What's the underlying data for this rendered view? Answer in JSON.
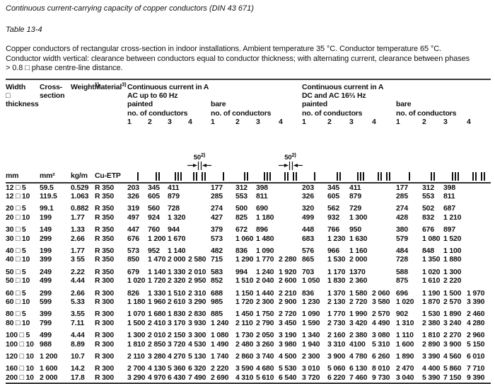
{
  "page": {
    "title": "Continuous current-carrying capacity of copper conductors (DIN 43 671)",
    "table_label": "Table 13-4",
    "description_lines": [
      "Copper conductors of rectangular cross-section in indoor installations. Ambient temperature 35 °C. Conductor temperature 65 °C.",
      "Conductor width vertical: clearance between conductors equal to conductor thickness; with alternating current, clearance between phases",
      "> 0.8 □ phase centre-line distance."
    ]
  },
  "table": {
    "header": {
      "width_line1": "Width",
      "width_line2": "□",
      "width_line3": "thickness",
      "cross_line1": "Cross-",
      "cross_line2": "section",
      "weight_label": "Weight",
      "weight_sup": "1)",
      "material_label": "Material",
      "material_sup": "3)",
      "ac_title": "Continuous current in A",
      "ac_subtitle": "AC up to 60 Hz",
      "dc_title": "Continuous current in A",
      "dc_subtitle": "DC and AC 16⅔ Hz",
      "painted": "painted",
      "bare": "bare",
      "no_of_conductors": "no. of conductors",
      "counts": [
        "1",
        "2",
        "3",
        "4"
      ]
    },
    "units": {
      "size": "mm",
      "area": "mm²",
      "weight": "kg/m",
      "material": "Cu-ETP"
    },
    "spacing_annotation": {
      "value": "50",
      "sup": "2)"
    },
    "symbols": [
      {
        "bars": 1
      },
      {
        "bars": 2
      },
      {
        "bars": 3
      },
      {
        "bars": 4,
        "paired": true,
        "annotated": true
      },
      {
        "bars": 1
      },
      {
        "bars": 2
      },
      {
        "bars": 3
      },
      {
        "bars": 4,
        "paired": true,
        "annotated": true
      },
      {
        "bars": 1
      },
      {
        "bars": 2
      },
      {
        "bars": 3
      },
      {
        "bars": 4,
        "paired": true
      },
      {
        "bars": 1
      },
      {
        "bars": 2
      },
      {
        "bars": 3
      },
      {
        "bars": 4,
        "paired": true
      }
    ],
    "rows": [
      {
        "size": "12 □  5",
        "area": "59.5",
        "weight": "0.529",
        "material": "R 350",
        "gap": false,
        "values": [
          "203",
          "345",
          "411",
          "",
          "177",
          "312",
          "398",
          "",
          "203",
          "345",
          "411",
          "",
          "177",
          "312",
          "398",
          ""
        ]
      },
      {
        "size": "12 □ 10",
        "area": "119.5",
        "weight": "1.063",
        "material": "R 350",
        "gap": false,
        "values": [
          "326",
          "605",
          "879",
          "",
          "285",
          "553",
          "811",
          "",
          "326",
          "605",
          "879",
          "",
          "285",
          "553",
          "811",
          ""
        ]
      },
      {
        "size": "20 □  5",
        "area": "99.1",
        "weight": "0.882",
        "material": "R 350",
        "gap": true,
        "values": [
          "319",
          "560",
          "728",
          "",
          "274",
          "500",
          "690",
          "",
          "320",
          "562",
          "729",
          "",
          "274",
          "502",
          "687",
          ""
        ]
      },
      {
        "size": "20 □ 10",
        "area": "199",
        "weight": "1.77",
        "material": "R 350",
        "gap": false,
        "values": [
          "497",
          "924",
          "1 320",
          "",
          "427",
          "825",
          "1 180",
          "",
          "499",
          "932",
          "1 300",
          "",
          "428",
          "832",
          "1 210",
          ""
        ]
      },
      {
        "size": "30 □  5",
        "area": "149",
        "weight": "1.33",
        "material": "R 350",
        "gap": true,
        "values": [
          "447",
          "760",
          "944",
          "",
          "379",
          "672",
          "896",
          "",
          "448",
          "766",
          "950",
          "",
          "380",
          "676",
          "897",
          ""
        ]
      },
      {
        "size": "30 □ 10",
        "area": "299",
        "weight": "2.66",
        "material": "R 350",
        "gap": false,
        "values": [
          "676",
          "1 200",
          "1 670",
          "",
          "573",
          "1 060",
          "1 480",
          "",
          "683",
          "1 230",
          "1 630",
          "",
          "579",
          "1 080",
          "1 520",
          ""
        ]
      },
      {
        "size": "40 □  5",
        "area": "199",
        "weight": "1.77",
        "material": "R 350",
        "gap": true,
        "values": [
          "573",
          "952",
          "1 140",
          "",
          "482",
          "836",
          "1 090",
          "",
          "576",
          "966",
          "1 160",
          "",
          "484",
          "848",
          "1 100",
          ""
        ]
      },
      {
        "size": "40 □ 10",
        "area": "399",
        "weight": "3 55",
        "material": "R 350",
        "gap": false,
        "values": [
          "850",
          "1 470",
          "2 000",
          "2 580",
          "715",
          "1 290",
          "1 770",
          "2 280",
          "865",
          "1 530",
          "2 000",
          "",
          "728",
          "1 350",
          "1 880",
          ""
        ]
      },
      {
        "size": "50 □  5",
        "area": "249",
        "weight": "2.22",
        "material": "R 350",
        "gap": true,
        "values": [
          "679",
          "1 140",
          "1 330",
          "2 010",
          "583",
          "994",
          "1 240",
          "1 920",
          "703",
          "1 170",
          "1370",
          "",
          "588",
          "1 020",
          "1 300",
          ""
        ]
      },
      {
        "size": "50 □ 10",
        "area": "499",
        "weight": "4.44",
        "material": "R 300",
        "gap": false,
        "values": [
          "1 020",
          "1 720",
          "2 320",
          "2 950",
          "852",
          "1 510",
          "2 040",
          "2 600",
          "1 050",
          "1 830",
          "2 360",
          "",
          "875",
          "1 610",
          "2 220",
          ""
        ]
      },
      {
        "size": "60 □  5",
        "area": "299",
        "weight": "2.66",
        "material": "R 300",
        "gap": true,
        "values": [
          "826",
          "1 330",
          "1 510",
          "2 310",
          "688",
          "1 150",
          "1 440",
          "2 210",
          "836",
          "1 370",
          "1 580",
          "2 060",
          "696",
          "1 190",
          "1 500",
          "1 970"
        ]
      },
      {
        "size": "60 □ 10",
        "area": "599",
        "weight": "5.33",
        "material": "R 300",
        "gap": false,
        "values": [
          "1 180",
          "1 960",
          "2 610",
          "3 290",
          "985",
          "1 720",
          "2 300",
          "2 900",
          "1 230",
          "2 130",
          "2 720",
          "3 580",
          "1 020",
          "1 870",
          "2 570",
          "3 390"
        ]
      },
      {
        "size": "80 □  5",
        "area": "399",
        "weight": "3.55",
        "material": "R 300",
        "gap": true,
        "values": [
          "1 070",
          "1 680",
          "1 830",
          "2 830",
          "885",
          "1 450",
          "1 750",
          "2 720",
          "1 090",
          "1 770",
          "1 990",
          "2 570",
          "902",
          "1 530",
          "1 890",
          "2 460"
        ]
      },
      {
        "size": "80 □ 10",
        "area": "799",
        "weight": "7.11",
        "material": "R 300",
        "gap": false,
        "values": [
          "1 500",
          "2 410",
          "3 170",
          "3 930",
          "1 240",
          "2 110",
          "2 790",
          "3 450",
          "1 590",
          "2 730",
          "3 420",
          "4 490",
          "1 310",
          "2 380",
          "3 240",
          "4 280"
        ]
      },
      {
        "size": "100 □  5",
        "area": "499",
        "weight": "4.44",
        "material": "R 300",
        "gap": true,
        "values": [
          "1 300",
          "2 010",
          "2 150",
          "3 300",
          "1 080",
          "1 730",
          "2 050",
          "3 190",
          "1 340",
          "2 160",
          "2 380",
          "3 080",
          "1 110",
          "1 810",
          "2 270",
          "2 960"
        ]
      },
      {
        "size": "100 □ 10",
        "area": "988",
        "weight": "8.89",
        "material": "R 300",
        "gap": false,
        "values": [
          "1 810",
          "2 850",
          "3 720",
          "4 530",
          "1 490",
          "2 480",
          "3 260",
          "3 980",
          "1 940",
          "3 310",
          "4100",
          "5 310",
          "1 600",
          "2 890",
          "3 900",
          "5 150"
        ]
      },
      {
        "size": "120 □ 10",
        "area": "1 200",
        "weight": "10.7",
        "material": "R 300",
        "gap": true,
        "values": [
          "2 110",
          "3 280",
          "4 270",
          "5 130",
          "1 740",
          "2 860",
          "3 740",
          "4 500",
          "2 300",
          "3 900",
          "4 780",
          "6 260",
          "1 890",
          "3 390",
          "4 560",
          "6 010"
        ]
      },
      {
        "size": "160 □ 10",
        "area": "1 600",
        "weight": "14.2",
        "material": "R 300",
        "gap": true,
        "values": [
          "2 700",
          "4 130",
          "5 360",
          "6 320",
          "2 220",
          "3 590",
          "4 680",
          "5 530",
          "3 010",
          "5 060",
          "6 130",
          "8 010",
          "2 470",
          "4 400",
          "5 860",
          "7 710"
        ]
      },
      {
        "size": "200 □ 10",
        "area": "2 000",
        "weight": "17.8",
        "material": "R 300",
        "gap": false,
        "values": [
          "3 290",
          "4 970",
          "6 430",
          "7 490",
          "2 690",
          "4 310",
          "5 610",
          "6 540",
          "3 720",
          "6 220",
          "7 460",
          "9 730",
          "3 040",
          "5 390",
          "7 150",
          "9 390"
        ]
      }
    ]
  }
}
